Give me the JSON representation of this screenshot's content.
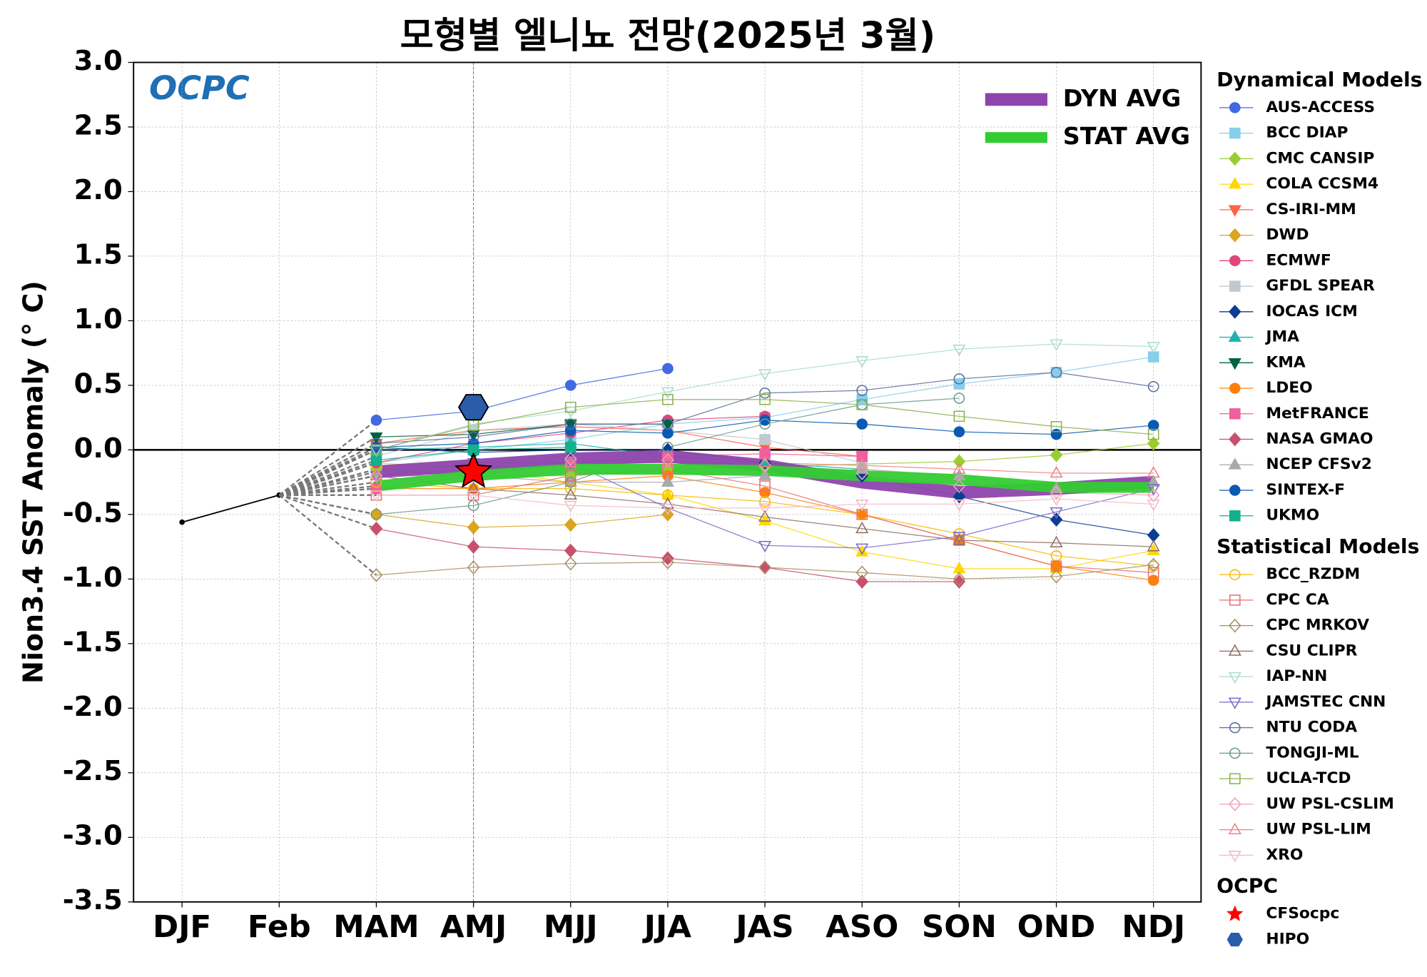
{
  "chart_data": {
    "type": "line",
    "title": "모형별 엘니뇨 전망(2025년 3월)",
    "y_label": "Nion3.4 SST Anomaly (° C)",
    "logo": "OCPC",
    "categories": [
      "DJF",
      "Feb",
      "MAM",
      "AMJ",
      "MJJ",
      "JJA",
      "JAS",
      "ASO",
      "SON",
      "OND",
      "NDJ"
    ],
    "ylim": [
      -3.5,
      3.0
    ],
    "yticks": [
      {
        "value": -3.5,
        "label": "-3.5"
      },
      {
        "value": -3,
        "label": "-3.0"
      },
      {
        "value": -2.5,
        "label": "-2.5"
      },
      {
        "value": -2,
        "label": "-2.0"
      },
      {
        "value": -1.5,
        "label": "-1.5"
      },
      {
        "value": -1,
        "label": "-1.0"
      },
      {
        "value": -0.5,
        "label": "-0.5"
      },
      {
        "value": 0,
        "label": "0.0"
      },
      {
        "value": 0.5,
        "label": "0.5"
      },
      {
        "value": 1,
        "label": "1.0"
      },
      {
        "value": 1.5,
        "label": "1.5"
      },
      {
        "value": 2,
        "label": "2.0"
      },
      {
        "value": 2.5,
        "label": "2.5"
      },
      {
        "value": 3,
        "label": "3.0"
      }
    ],
    "grid": true,
    "observed": {
      "color": "#000000",
      "values": [
        -0.56,
        -0.35,
        null,
        null,
        null,
        null,
        null,
        null,
        null,
        null,
        null
      ]
    },
    "legend_groups": [
      "Dynamical Models",
      "Statistical Models",
      "OCPC"
    ],
    "averages": [
      {
        "name": "DYN AVG",
        "color": "#8e44ad",
        "values": [
          null,
          null,
          -0.17,
          -0.12,
          -0.07,
          -0.05,
          -0.12,
          -0.25,
          -0.33,
          -0.3,
          -0.25
        ]
      },
      {
        "name": "STAT AVG",
        "color": "#33cc33",
        "values": [
          null,
          null,
          -0.28,
          -0.2,
          -0.15,
          -0.15,
          -0.16,
          -0.2,
          -0.23,
          -0.29,
          -0.29
        ]
      }
    ],
    "series": [
      {
        "name": "AUS-ACCESS",
        "group": 0,
        "color": "#4169e1",
        "marker": "circle",
        "filled": true,
        "values": [
          null,
          null,
          0.23,
          0.3,
          0.5,
          0.63,
          null,
          null,
          null,
          null,
          null
        ]
      },
      {
        "name": "BCC DIAP",
        "group": 0,
        "color": "#87ceeb",
        "marker": "square",
        "filled": true,
        "values": [
          null,
          null,
          -0.1,
          0.0,
          0.08,
          0.2,
          0.25,
          0.39,
          0.51,
          0.6,
          0.72
        ]
      },
      {
        "name": "CMC CANSIP",
        "group": 0,
        "color": "#9acd32",
        "marker": "diamond",
        "filled": true,
        "values": [
          null,
          null,
          -0.15,
          -0.2,
          -0.2,
          -0.15,
          -0.13,
          -0.11,
          -0.09,
          -0.04,
          0.05
        ]
      },
      {
        "name": "COLA CCSM4",
        "group": 0,
        "color": "#ffd700",
        "marker": "triangle-up",
        "filled": true,
        "values": [
          null,
          null,
          -0.1,
          -0.15,
          -0.25,
          -0.35,
          -0.55,
          -0.79,
          -0.92,
          -0.92,
          -0.78
        ]
      },
      {
        "name": "CS-IRI-MM",
        "group": 0,
        "color": "#ff6347",
        "marker": "triangle-down",
        "filled": true,
        "values": [
          null,
          null,
          0.05,
          0.15,
          0.18,
          0.15,
          0.02,
          -0.05,
          null,
          null,
          null
        ]
      },
      {
        "name": "DWD",
        "group": 0,
        "color": "#daa520",
        "marker": "diamond",
        "filled": true,
        "values": [
          null,
          null,
          -0.5,
          -0.6,
          -0.58,
          -0.5,
          null,
          null,
          null,
          null,
          null
        ]
      },
      {
        "name": "ECMWF",
        "group": 0,
        "color": "#e0457b",
        "marker": "circle",
        "filled": true,
        "values": [
          null,
          null,
          -0.1,
          0.05,
          0.13,
          0.23,
          0.26,
          null,
          null,
          null,
          null
        ]
      },
      {
        "name": "GFDL SPEAR",
        "group": 0,
        "color": "#c0c8d0",
        "marker": "square",
        "filled": true,
        "values": [
          null,
          null,
          -0.05,
          0.15,
          0.2,
          0.15,
          0.08,
          -0.1,
          null,
          null,
          null
        ]
      },
      {
        "name": "IOCAS ICM",
        "group": 0,
        "color": "#0b3d91",
        "marker": "diamond",
        "filled": true,
        "values": [
          null,
          null,
          0.02,
          -0.02,
          0.0,
          0.0,
          -0.1,
          -0.2,
          -0.36,
          -0.54,
          -0.66
        ]
      },
      {
        "name": "JMA",
        "group": 0,
        "color": "#20b2aa",
        "marker": "triangle-up",
        "filled": true,
        "values": [
          null,
          null,
          0.0,
          0.02,
          0.05,
          -0.05,
          -0.1,
          -0.15,
          null,
          null,
          null
        ]
      },
      {
        "name": "KMA",
        "group": 0,
        "color": "#006241",
        "marker": "triangle-down",
        "filled": true,
        "values": [
          null,
          null,
          0.1,
          0.12,
          0.2,
          0.2,
          null,
          null,
          null,
          null,
          null
        ]
      },
      {
        "name": "LDEO",
        "group": 0,
        "color": "#ff7f0e",
        "marker": "circle",
        "filled": true,
        "values": [
          null,
          null,
          -0.3,
          -0.3,
          -0.25,
          -0.2,
          -0.33,
          -0.5,
          -0.7,
          -0.9,
          -1.01
        ]
      },
      {
        "name": "MetFRANCE",
        "group": 0,
        "color": "#f0609e",
        "marker": "square",
        "filled": true,
        "values": [
          null,
          null,
          -0.3,
          -0.2,
          -0.1,
          -0.05,
          -0.03,
          -0.05,
          null,
          null,
          null
        ]
      },
      {
        "name": "NASA GMAO",
        "group": 0,
        "color": "#c8506e",
        "marker": "diamond",
        "filled": true,
        "values": [
          null,
          null,
          -0.61,
          -0.75,
          -0.78,
          -0.84,
          -0.91,
          -1.02,
          -1.02,
          null,
          null
        ]
      },
      {
        "name": "NCEP CFSv2",
        "group": 0,
        "color": "#a9a9a9",
        "marker": "triangle-up",
        "filled": true,
        "values": [
          null,
          null,
          -0.2,
          -0.2,
          -0.25,
          -0.25,
          -0.2,
          -0.15,
          -0.2,
          -0.3,
          -0.25
        ]
      },
      {
        "name": "SINTEX-F",
        "group": 0,
        "color": "#0a5ab4",
        "marker": "circle",
        "filled": true,
        "values": [
          null,
          null,
          0.02,
          0.05,
          0.15,
          0.13,
          0.23,
          0.2,
          0.14,
          0.12,
          0.19
        ]
      },
      {
        "name": "UKMO",
        "group": 0,
        "color": "#13b08c",
        "marker": "square",
        "filled": true,
        "values": [
          null,
          null,
          -0.08,
          0.0,
          0.02,
          null,
          null,
          null,
          null,
          null,
          null
        ]
      },
      {
        "name": "BCC_RZDM",
        "group": 1,
        "color": "#f5b800",
        "marker": "circle",
        "filled": false,
        "values": [
          null,
          null,
          -0.25,
          -0.3,
          -0.3,
          -0.35,
          -0.4,
          -0.5,
          -0.65,
          -0.82,
          -0.9
        ]
      },
      {
        "name": "CPC CA",
        "group": 1,
        "color": "#e87070",
        "marker": "square",
        "filled": false,
        "values": [
          null,
          null,
          -0.35,
          -0.35,
          -0.2,
          -0.15,
          -0.28,
          -0.5,
          -0.7,
          -0.9,
          -0.95
        ]
      },
      {
        "name": "CPC MRKOV",
        "group": 1,
        "color": "#a89060",
        "marker": "diamond",
        "filled": false,
        "values": [
          null,
          null,
          -0.97,
          -0.91,
          -0.88,
          -0.87,
          -0.91,
          -0.95,
          -1.0,
          -0.98,
          -0.89
        ]
      },
      {
        "name": "CSU CLIPR",
        "group": 1,
        "color": "#8c6d62",
        "marker": "triangle-up",
        "filled": false,
        "values": [
          null,
          null,
          -0.2,
          -0.3,
          -0.35,
          -0.42,
          -0.52,
          -0.61,
          -0.7,
          -0.72,
          -0.75
        ]
      },
      {
        "name": "IAP-NN",
        "group": 1,
        "color": "#a8dcd1",
        "marker": "triangle-down",
        "filled": false,
        "values": [
          null,
          null,
          0.0,
          0.2,
          0.3,
          0.45,
          0.59,
          0.69,
          0.78,
          0.82,
          0.8
        ]
      },
      {
        "name": "JAMSTEC CNN",
        "group": 1,
        "color": "#7b68c8",
        "marker": "triangle-down",
        "filled": false,
        "values": [
          null,
          null,
          -0.2,
          -0.1,
          -0.1,
          -0.45,
          -0.74,
          -0.76,
          -0.67,
          -0.48,
          -0.3
        ]
      },
      {
        "name": "NTU CODA",
        "group": 1,
        "color": "#5a6ea0",
        "marker": "circle",
        "filled": false,
        "values": [
          null,
          null,
          0.05,
          0.1,
          0.2,
          0.2,
          0.44,
          0.46,
          0.55,
          0.6,
          0.49
        ]
      },
      {
        "name": "TONGJI-ML",
        "group": 1,
        "color": "#6a9a8a",
        "marker": "circle",
        "filled": false,
        "values": [
          null,
          null,
          -0.5,
          -0.43,
          -0.25,
          0.02,
          0.2,
          0.35,
          0.4,
          null,
          null
        ]
      },
      {
        "name": "UCLA-TCD",
        "group": 1,
        "color": "#8db04a",
        "marker": "square",
        "filled": false,
        "values": [
          null,
          null,
          0.0,
          0.19,
          0.33,
          0.39,
          0.39,
          0.35,
          0.26,
          0.18,
          0.12
        ]
      },
      {
        "name": "UW PSL-CSLIM",
        "group": 1,
        "color": "#f0a0b8",
        "marker": "diamond",
        "filled": false,
        "values": [
          null,
          null,
          -0.2,
          -0.15,
          -0.07,
          -0.08,
          -0.12,
          -0.18,
          -0.28,
          -0.33,
          -0.35
        ]
      },
      {
        "name": "UW PSL-LIM",
        "group": 1,
        "color": "#f08080",
        "marker": "triangle-up",
        "filled": false,
        "values": [
          null,
          null,
          -0.2,
          -0.15,
          -0.1,
          -0.1,
          -0.1,
          -0.12,
          -0.15,
          -0.18,
          -0.18
        ]
      },
      {
        "name": "XRO",
        "group": 1,
        "color": "#f4b8c8",
        "marker": "triangle-down",
        "filled": false,
        "values": [
          null,
          null,
          -0.35,
          -0.35,
          -0.43,
          -0.45,
          -0.45,
          -0.42,
          -0.42,
          -0.38,
          -0.42
        ]
      },
      {
        "name": "CFSocpc",
        "group": 2,
        "color": "#ff0000",
        "marker": "star",
        "filled": true,
        "values": [
          null,
          null,
          null,
          -0.17,
          null,
          null,
          null,
          null,
          null,
          null,
          null
        ]
      },
      {
        "name": "HIPO",
        "group": 2,
        "color": "#2a5caa",
        "marker": "hexagon",
        "filled": true,
        "values": [
          null,
          null,
          null,
          0.33,
          null,
          null,
          null,
          null,
          null,
          null,
          null
        ]
      }
    ]
  }
}
